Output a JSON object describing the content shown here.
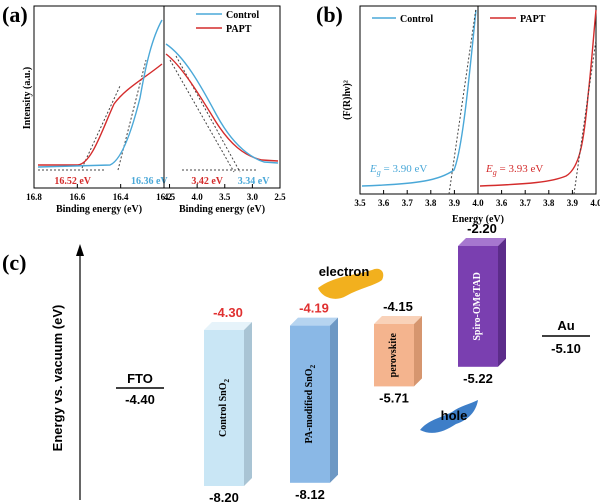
{
  "panels": {
    "a": {
      "label": "(a)",
      "ylabel": "Intensity (a.u.)",
      "legend": [
        {
          "name": "Control",
          "color": "#4aa8d8"
        },
        {
          "name": "PAPT",
          "color": "#d42c2c"
        }
      ],
      "left": {
        "xlabel": "Binding energy (eV)",
        "xlim": [
          16.8,
          16.2
        ],
        "ticks": [
          "16.8",
          "16.6",
          "16.4",
          "16.2"
        ],
        "tick_values": [
          16.8,
          16.6,
          16.4,
          16.2
        ],
        "annotations": [
          {
            "text": "16.52 eV",
            "value": 16.52,
            "color": "#d42c2c"
          },
          {
            "text": "16.36 eV",
            "value": 16.36,
            "color": "#4aa8d8"
          }
        ]
      },
      "right": {
        "xlabel": "Binding energy (eV)",
        "xlim": [
          4.6,
          2.5
        ],
        "ticks": [
          "4.5",
          "4.0",
          "3.5",
          "3.0",
          "2.5"
        ],
        "tick_values": [
          4.5,
          4.0,
          3.5,
          3.0,
          2.5
        ],
        "annotations": [
          {
            "text": "3.42 eV",
            "value": 3.42,
            "color": "#d42c2c"
          },
          {
            "text": "3.34 eV",
            "value": 3.34,
            "color": "#4aa8d8"
          }
        ]
      }
    },
    "b": {
      "label": "(b)",
      "ylabel": "(F(R)hν)²",
      "xlabel": "Energy (eV)",
      "xlim": [
        3.5,
        4.0
      ],
      "ticks": [
        "3.5",
        "3.6",
        "3.7",
        "3.8",
        "3.9",
        "4.0"
      ],
      "tick_values": [
        3.5,
        3.6,
        3.7,
        3.8,
        3.9,
        4.0
      ],
      "left": {
        "legend": "Control",
        "color": "#4aa8d8",
        "eg_symbol": "E",
        "eg_sub": "g",
        "eg_text": " = 3.90 eV",
        "eg": 3.9
      },
      "right": {
        "legend": "PAPT",
        "color": "#d42c2c",
        "eg_symbol": "E",
        "eg_sub": "g",
        "eg_text": " = 3.93 eV",
        "eg": 3.93
      }
    },
    "c": {
      "label": "(c)",
      "ylabel": "Energy vs. vacuum (eV)",
      "fto": {
        "name": "FTO",
        "value": "-4.40",
        "energy": -4.4
      },
      "au": {
        "name": "Au",
        "value": "-5.10",
        "energy": -5.1
      },
      "blocks": [
        {
          "name": "Control SnO",
          "sub": "2",
          "cbm": "-4.30",
          "vbm": "-8.20",
          "cbm_energy": -4.3,
          "vbm_energy": -8.2,
          "cbm_color": "#e03030",
          "front": "#c9e6f5",
          "side": "#a9c4d4",
          "top": "#e6f3fa"
        },
        {
          "name": "PA-modified SnO",
          "sub": "2",
          "cbm": "-4.19",
          "vbm": "-8.12",
          "cbm_energy": -4.19,
          "vbm_energy": -8.12,
          "cbm_color": "#e03030",
          "front": "#8ab8e6",
          "side": "#6d98c4",
          "top": "#b6d4f0"
        },
        {
          "name": "perovskite",
          "sub": "",
          "cbm": "-4.15",
          "vbm": "-5.71",
          "cbm_energy": -4.15,
          "vbm_energy": -5.71,
          "cbm_color": "#000000",
          "front": "#f4b48e",
          "side": "#d6966f",
          "top": "#f9d2b9"
        },
        {
          "name": "Spiro-OMeTAD",
          "sub": "",
          "cbm": "-2.20",
          "vbm": "-5.22",
          "cbm_energy": -2.2,
          "vbm_energy": -5.22,
          "cbm_color": "#000000",
          "front": "#7a3fb0",
          "side": "#5c2c8a",
          "top": "#a677cf"
        }
      ],
      "electron_label": "electron",
      "hole_label": "hole",
      "electron_color": "#f2b01e",
      "hole_color": "#3d7ec8"
    }
  }
}
